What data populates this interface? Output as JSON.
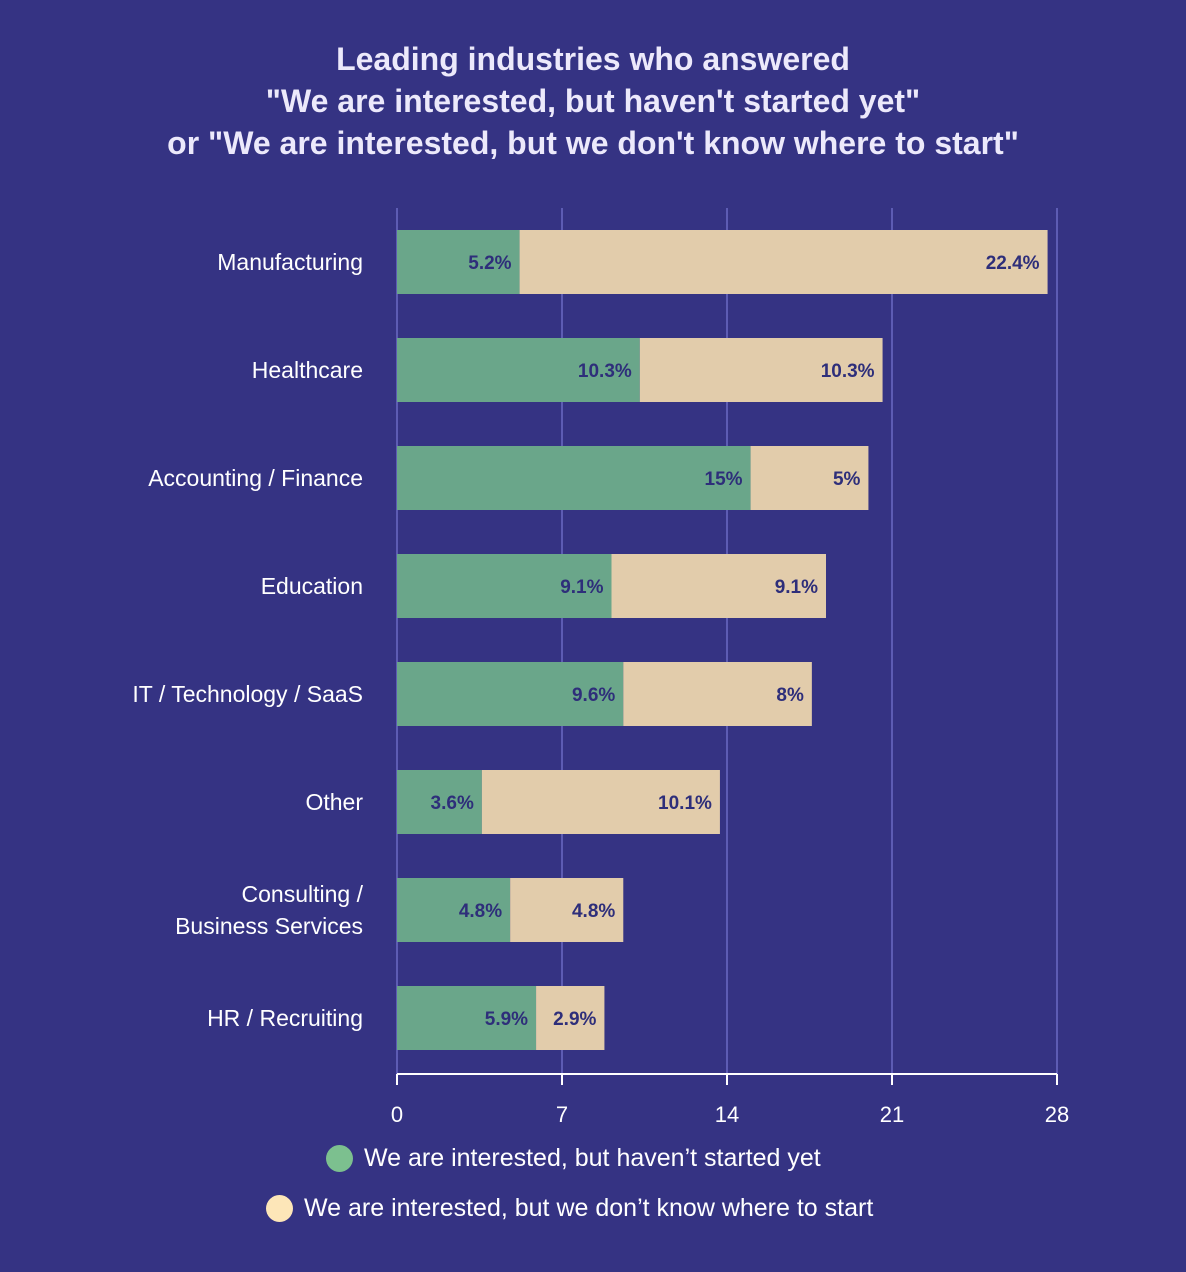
{
  "chart_data": {
    "type": "bar",
    "orientation": "horizontal",
    "stacked": true,
    "title_lines": [
      "Leading industries who answered",
      "\"We are interested, but haven't started yet\"",
      "or \"We are interested, but we don't know where to start\""
    ],
    "categories": [
      "Manufacturing",
      "Healthcare",
      "Accounting / Finance",
      "Education",
      "IT / Technology / SaaS",
      "Other",
      "Consulting / Business Services",
      "HR / Recruiting"
    ],
    "category_lines": [
      [
        "Manufacturing"
      ],
      [
        "Healthcare"
      ],
      [
        "Accounting / Finance"
      ],
      [
        "Education"
      ],
      [
        "IT / Technology / SaaS"
      ],
      [
        "Other"
      ],
      [
        "Consulting /",
        "Business Services"
      ],
      [
        "HR / Recruiting"
      ]
    ],
    "series": [
      {
        "name": "We are interested, but haven’t started yet",
        "color": "#6aa68a",
        "values": [
          5.2,
          10.3,
          15,
          9.1,
          9.6,
          3.6,
          4.8,
          5.9
        ],
        "labels": [
          "5.2%",
          "10.3%",
          "15%",
          "9.1%",
          "9.6%",
          "3.6%",
          "4.8%",
          "5.9%"
        ]
      },
      {
        "name": "We are interested, but we don’t know where to start",
        "color": "#e2ccab",
        "values": [
          22.4,
          10.3,
          5,
          9.1,
          8,
          10.1,
          4.8,
          2.9
        ],
        "labels": [
          "22.4%",
          "10.3%",
          "5%",
          "9.1%",
          "8%",
          "10.1%",
          "4.8%",
          "2.9%"
        ]
      }
    ],
    "xlim": [
      0,
      28
    ],
    "x_ticks": [
      0,
      7,
      14,
      21,
      28
    ],
    "grid": true,
    "legend_position": "bottom",
    "legend_dot_colors": [
      "#7cc08f",
      "#fde6b8"
    ],
    "label_color": "#2e2e7a"
  }
}
